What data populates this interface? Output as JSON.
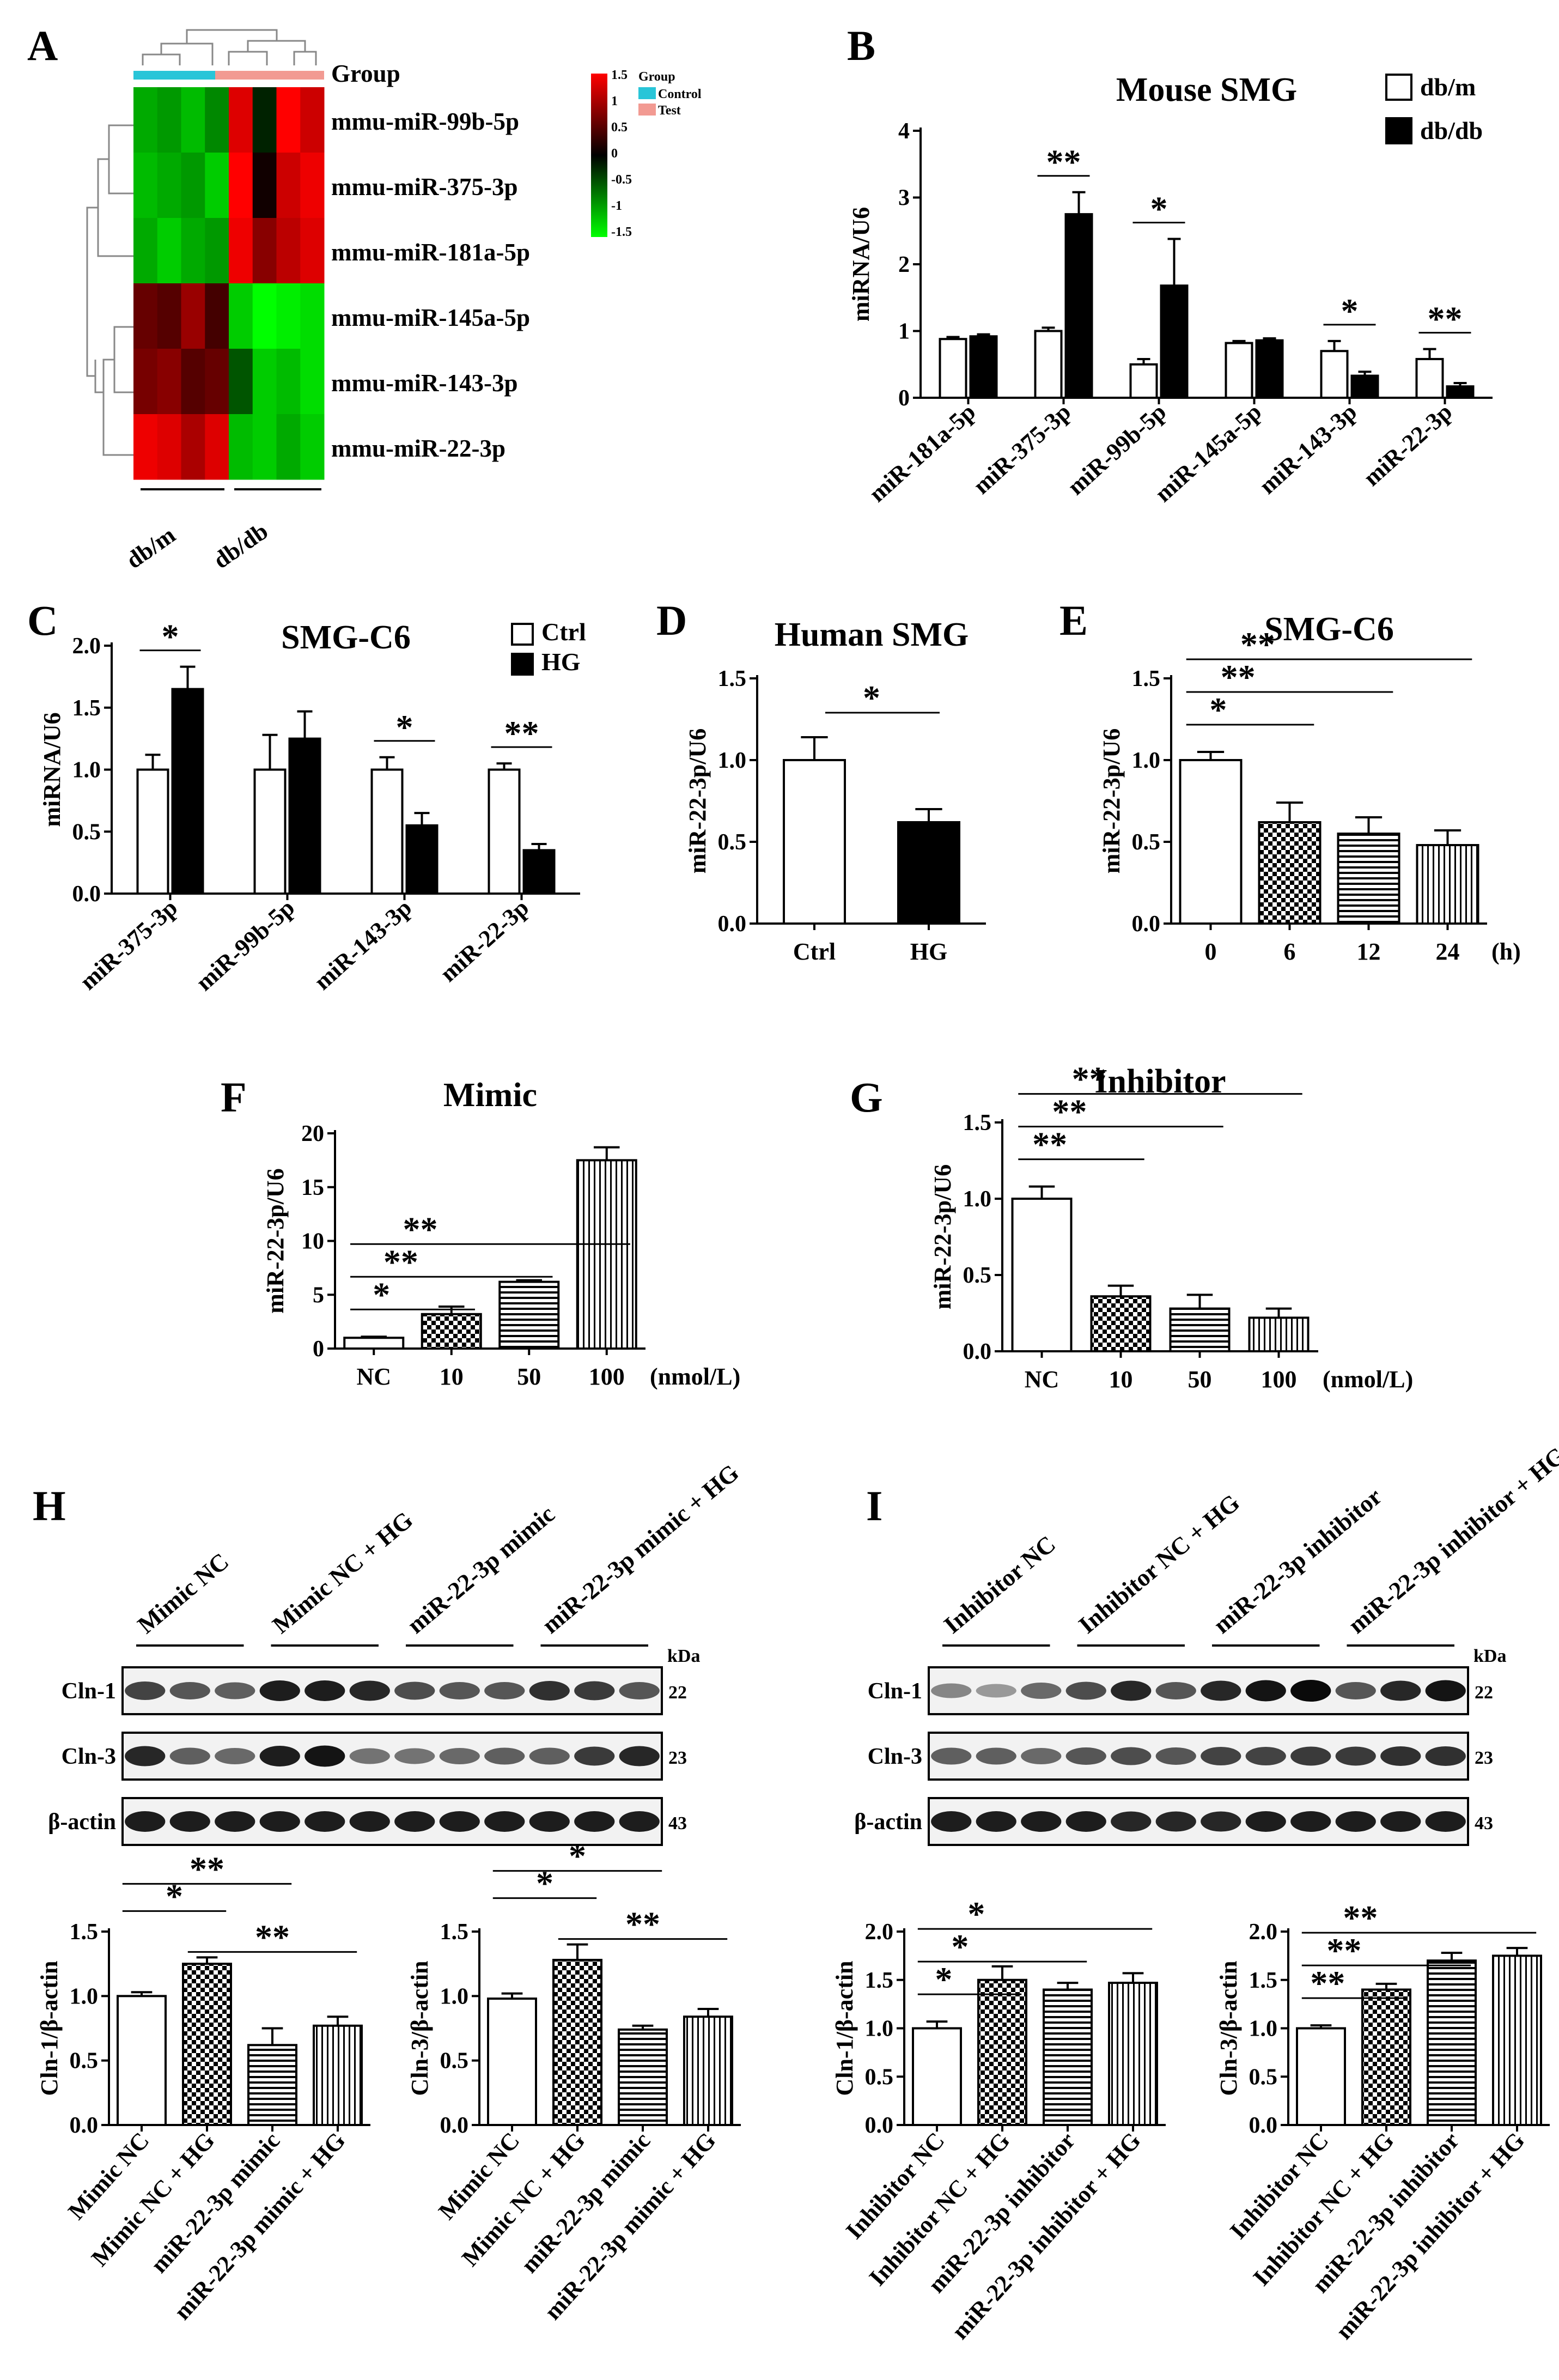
{
  "colors": {
    "black": "#000000",
    "white": "#ffffff",
    "control": "#29c5d8",
    "test": "#f29a92",
    "heat_hi": "#ff0000",
    "heat_lo": "#00ff00"
  },
  "panelA": {
    "letter": "A",
    "group_label": "Group",
    "rows": [
      "mmu-miR-99b-5p",
      "mmu-miR-375-3p",
      "mmu-miR-181a-5p",
      "mmu-miR-145a-5p",
      "mmu-miR-143-3p",
      "mmu-miR-22-3p"
    ],
    "columns": [
      "db/m",
      "db/db"
    ],
    "scale_title": "Group",
    "scale_ticks": [
      "1.5",
      "1",
      "0.5",
      "0",
      "-0.5",
      "-1",
      "-1.5"
    ],
    "legend_items": [
      "Control",
      "Test"
    ],
    "matrix": [
      [
        -1.0,
        -0.9,
        -1.1,
        -0.8,
        1.3,
        -0.2,
        1.5,
        1.2
      ],
      [
        -1.1,
        -1.0,
        -0.9,
        -1.2,
        1.5,
        0.1,
        1.2,
        1.4
      ],
      [
        -1.0,
        -1.2,
        -1.0,
        -0.9,
        1.4,
        0.8,
        1.1,
        1.3
      ],
      [
        0.6,
        0.5,
        0.9,
        0.4,
        -1.2,
        -1.5,
        -1.4,
        -1.3
      ],
      [
        0.7,
        0.8,
        0.5,
        0.6,
        -0.5,
        -1.2,
        -1.1,
        -1.3
      ],
      [
        1.4,
        1.3,
        1.0,
        1.3,
        -1.1,
        -1.2,
        -1.0,
        -1.2
      ]
    ]
  },
  "chart_data": [
    {
      "id": "B",
      "type": "bar",
      "letter": "B",
      "title": "Mouse SMG",
      "ylabel": "miRNA/U6",
      "ylim": [
        0,
        4
      ],
      "yticks": [
        "0",
        "1",
        "2",
        "3",
        "4"
      ],
      "categories": [
        "miR-181a-5p",
        "miR-375-3p",
        "miR-99b-5p",
        "miR-145a-5p",
        "miR-143-3p",
        "miR-22-3p"
      ],
      "series": [
        {
          "name": "db/m",
          "fill": "white",
          "values": [
            0.88,
            1.0,
            0.5,
            0.82,
            0.7,
            0.58
          ],
          "errors": [
            0.03,
            0.05,
            0.08,
            0.03,
            0.15,
            0.15
          ]
        },
        {
          "name": "db/db",
          "fill": "black",
          "values": [
            0.92,
            2.75,
            1.68,
            0.86,
            0.33,
            0.17
          ],
          "errors": [
            0.03,
            0.33,
            0.7,
            0.03,
            0.06,
            0.05
          ]
        }
      ],
      "significance": [
        "",
        "**",
        "*",
        "",
        "*",
        "**"
      ]
    },
    {
      "id": "C",
      "type": "bar",
      "letter": "C",
      "title": "SMG-C6",
      "ylabel": "miRNA/U6",
      "ylim": [
        0,
        2.0
      ],
      "yticks": [
        "0.0",
        "0.5",
        "1.0",
        "1.5",
        "2.0"
      ],
      "categories": [
        "miR-375-3p",
        "miR-99b-5p",
        "miR-143-3p",
        "miR-22-3p"
      ],
      "series": [
        {
          "name": "Ctrl",
          "fill": "white",
          "values": [
            1.0,
            1.0,
            1.0,
            1.0
          ],
          "errors": [
            0.12,
            0.28,
            0.1,
            0.05
          ]
        },
        {
          "name": "HG",
          "fill": "black",
          "values": [
            1.65,
            1.25,
            0.55,
            0.35
          ],
          "errors": [
            0.18,
            0.22,
            0.1,
            0.05
          ]
        }
      ],
      "significance": [
        "*",
        "",
        "*",
        "**"
      ]
    },
    {
      "id": "D",
      "type": "bar",
      "letter": "D",
      "title": "Human SMG",
      "ylabel": "miR-22-3p/U6",
      "ylim": [
        0,
        1.5
      ],
      "yticks": [
        "0.0",
        "0.5",
        "1.0",
        "1.5"
      ],
      "categories": [
        "Ctrl",
        "HG"
      ],
      "values": [
        1.0,
        0.62
      ],
      "errors": [
        0.14,
        0.08
      ],
      "fills": [
        "white",
        "black"
      ],
      "brackets": [
        {
          "from": 0,
          "to": 1,
          "label": "*"
        }
      ]
    },
    {
      "id": "E",
      "type": "bar",
      "letter": "E",
      "title": "SMG-C6",
      "ylabel": "miR-22-3p/U6",
      "ylim": [
        0,
        1.5
      ],
      "yticks": [
        "0.0",
        "0.5",
        "1.0",
        "1.5"
      ],
      "categories": [
        "0",
        "6",
        "12",
        "24"
      ],
      "unit": "(h)",
      "values": [
        1.0,
        0.62,
        0.55,
        0.48
      ],
      "errors": [
        0.05,
        0.12,
        0.1,
        0.09
      ],
      "fills": [
        "white",
        "check",
        "hstripe",
        "vstripe"
      ],
      "brackets": [
        {
          "from": 0,
          "to": 1,
          "label": "*"
        },
        {
          "from": 0,
          "to": 2,
          "label": "**"
        },
        {
          "from": 0,
          "to": 3,
          "label": "**"
        }
      ]
    },
    {
      "id": "F",
      "type": "bar",
      "letter": "F",
      "title": "Mimic",
      "ylabel": "miR-22-3p/U6",
      "ylim": [
        0,
        20
      ],
      "yticks": [
        "0",
        "5",
        "10",
        "15",
        "20"
      ],
      "categories": [
        "NC",
        "10",
        "50",
        "100"
      ],
      "unit": "(nmol/L)",
      "values": [
        1.0,
        3.2,
        6.2,
        17.5
      ],
      "errors": [
        0.1,
        0.7,
        0.15,
        1.2
      ],
      "fills": [
        "white",
        "check",
        "hstripe",
        "vstripe"
      ],
      "brackets": [
        {
          "from": 0,
          "to": 1,
          "label": "*"
        },
        {
          "from": 0,
          "to": 2,
          "label": "**"
        },
        {
          "from": 0,
          "to": 3,
          "label": "**"
        }
      ]
    },
    {
      "id": "G",
      "type": "bar",
      "letter": "G",
      "title": "Inhibitor",
      "ylabel": "miR-22-3p/U6",
      "ylim": [
        0,
        1.5
      ],
      "yticks": [
        "0.0",
        "0.5",
        "1.0",
        "1.5"
      ],
      "categories": [
        "NC",
        "10",
        "50",
        "100"
      ],
      "unit": "(nmol/L)",
      "values": [
        1.0,
        0.36,
        0.28,
        0.22
      ],
      "errors": [
        0.08,
        0.07,
        0.09,
        0.06
      ],
      "fills": [
        "white",
        "check",
        "hstripe",
        "vstripe"
      ],
      "brackets": [
        {
          "from": 0,
          "to": 1,
          "label": "**"
        },
        {
          "from": 0,
          "to": 2,
          "label": "**"
        },
        {
          "from": 0,
          "to": 3,
          "label": "**"
        }
      ]
    },
    {
      "id": "H1",
      "type": "bar",
      "letter": "",
      "title": "",
      "ylabel": "Cln-1/β-actin",
      "ylim": [
        0,
        1.5
      ],
      "yticks": [
        "0.0",
        "0.5",
        "1.0",
        "1.5"
      ],
      "categories": [
        "Mimic NC",
        "Mimic NC + HG",
        "miR-22-3p mimic",
        "miR-22-3p mimic + HG"
      ],
      "values": [
        1.0,
        1.25,
        0.62,
        0.77
      ],
      "errors": [
        0.03,
        0.05,
        0.13,
        0.07
      ],
      "fills": [
        "white",
        "check",
        "hstripe",
        "vstripe"
      ],
      "brackets": [
        {
          "from": 0,
          "to": 1,
          "label": "*"
        },
        {
          "from": 0,
          "to": 2,
          "label": "**"
        },
        {
          "from": 1,
          "to": 3,
          "label": "**"
        }
      ]
    },
    {
      "id": "H2",
      "type": "bar",
      "letter": "",
      "title": "",
      "ylabel": "Cln-3/β-actin",
      "ylim": [
        0,
        1.5
      ],
      "yticks": [
        "0.0",
        "0.5",
        "1.0",
        "1.5"
      ],
      "categories": [
        "Mimic NC",
        "Mimic NC + HG",
        "miR-22-3p mimic",
        "miR-22-3p mimic + HG"
      ],
      "values": [
        0.98,
        1.28,
        0.74,
        0.84
      ],
      "errors": [
        0.04,
        0.12,
        0.03,
        0.06
      ],
      "fills": [
        "white",
        "check",
        "hstripe",
        "vstripe"
      ],
      "brackets": [
        {
          "from": 0,
          "to": 1,
          "label": "*"
        },
        {
          "from": 0,
          "to": 2,
          "label": "*"
        },
        {
          "from": 1,
          "to": 3,
          "label": "**"
        }
      ]
    },
    {
      "id": "I1",
      "type": "bar",
      "letter": "",
      "title": "",
      "ylabel": "Cln-1/β-actin",
      "ylim": [
        0,
        2.0
      ],
      "yticks": [
        "0.0",
        "0.5",
        "1.0",
        "1.5",
        "2.0"
      ],
      "categories": [
        "Inhibitor NC",
        "Inhibitor NC + HG",
        "miR-22-3p inhibitor",
        "miR-22-3p inhibitor + HG"
      ],
      "values": [
        1.0,
        1.5,
        1.4,
        1.47
      ],
      "errors": [
        0.07,
        0.14,
        0.07,
        0.1
      ],
      "fills": [
        "white",
        "check",
        "hstripe",
        "vstripe"
      ],
      "brackets": [
        {
          "from": 0,
          "to": 1,
          "label": "*"
        },
        {
          "from": 0,
          "to": 2,
          "label": "*"
        },
        {
          "from": 0,
          "to": 3,
          "label": "*"
        }
      ]
    },
    {
      "id": "I2",
      "type": "bar",
      "letter": "",
      "title": "",
      "ylabel": "Cln-3/β-actin",
      "ylim": [
        0,
        2.0
      ],
      "yticks": [
        "0.0",
        "0.5",
        "1.0",
        "1.5",
        "2.0"
      ],
      "categories": [
        "Inhibitor NC",
        "Inhibitor NC + HG",
        "miR-22-3p inhibitor",
        "miR-22-3p inhibitor + HG"
      ],
      "values": [
        1.0,
        1.4,
        1.7,
        1.75
      ],
      "errors": [
        0.03,
        0.06,
        0.08,
        0.08
      ],
      "fills": [
        "white",
        "check",
        "hstripe",
        "vstripe"
      ],
      "brackets": [
        {
          "from": 0,
          "to": 1,
          "label": "**"
        },
        {
          "from": 0,
          "to": 2,
          "label": "**"
        },
        {
          "from": 0,
          "to": 3,
          "label": "**"
        }
      ]
    }
  ],
  "blots": [
    {
      "id": "H",
      "letter": "H",
      "groups": [
        "Mimic NC",
        "Mimic NC + HG",
        "miR-22-3p mimic",
        "miR-22-3p mimic + HG"
      ],
      "unit": "kDa",
      "bands": [
        {
          "name": "Cln-1",
          "kda": "22",
          "intensity": [
            0.7,
            0.6,
            0.55,
            0.9,
            0.9,
            0.85,
            0.65,
            0.6,
            0.6,
            0.8,
            0.75,
            0.6
          ]
        },
        {
          "name": "Cln-3",
          "kda": "23",
          "intensity": [
            0.85,
            0.55,
            0.5,
            0.9,
            0.95,
            0.45,
            0.45,
            0.5,
            0.55,
            0.55,
            0.75,
            0.85
          ]
        },
        {
          "name": "β-actin",
          "kda": "43",
          "intensity": [
            0.9,
            0.9,
            0.9,
            0.9,
            0.9,
            0.9,
            0.9,
            0.9,
            0.9,
            0.9,
            0.9,
            0.9
          ]
        }
      ]
    },
    {
      "id": "I",
      "letter": "I",
      "groups": [
        "Inhibitor NC",
        "Inhibitor NC + HG",
        "miR-22-3p inhibitor",
        "miR-22-3p inhibitor + HG"
      ],
      "unit": "kDa",
      "bands": [
        {
          "name": "Cln-1",
          "kda": "22",
          "intensity": [
            0.35,
            0.25,
            0.5,
            0.65,
            0.85,
            0.6,
            0.85,
            0.95,
            1.0,
            0.6,
            0.85,
            0.95
          ]
        },
        {
          "name": "Cln-3",
          "kda": "23",
          "intensity": [
            0.55,
            0.55,
            0.5,
            0.6,
            0.65,
            0.6,
            0.7,
            0.7,
            0.75,
            0.75,
            0.8,
            0.8
          ]
        },
        {
          "name": "β-actin",
          "kda": "43",
          "intensity": [
            0.9,
            0.9,
            0.9,
            0.9,
            0.85,
            0.85,
            0.85,
            0.9,
            0.9,
            0.9,
            0.9,
            0.9
          ]
        }
      ]
    }
  ]
}
